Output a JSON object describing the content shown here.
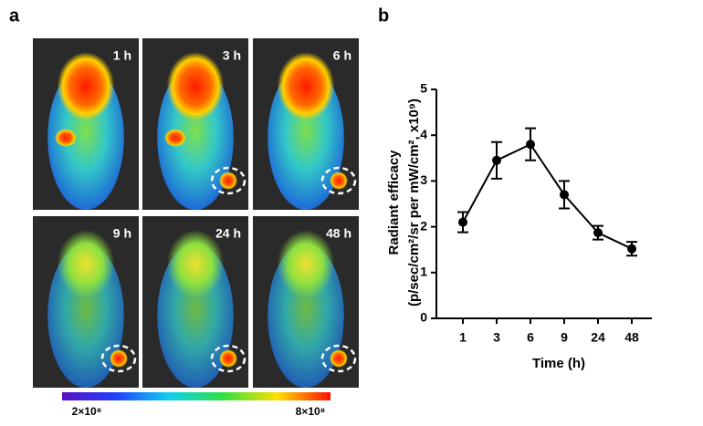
{
  "figure": {
    "panel_a": {
      "label": "a",
      "images": [
        "1 h",
        "3 h",
        "6 h",
        "9 h",
        "24 h",
        "48 h"
      ],
      "colorbar_labels": [
        "2×10⁸",
        "8×10⁸"
      ]
    }
  },
  "chart_data": {
    "type": "line",
    "panel_label": "b",
    "y_label": [
      "Radiant efficacy",
      "(p/sec/cm²/sr per mW/cm², x10⁹)"
    ],
    "x_label": "Time (h)",
    "categories": [
      "1",
      "3",
      "6",
      "9",
      "24",
      "48"
    ],
    "values": [
      2.1,
      3.45,
      3.8,
      2.7,
      1.87,
      1.52
    ],
    "errors": [
      0.22,
      0.4,
      0.35,
      0.3,
      0.15,
      0.15
    ],
    "color": "#000000",
    "ylim": [
      0,
      5
    ],
    "yticks": [
      0,
      1,
      2,
      3,
      4,
      5
    ]
  }
}
